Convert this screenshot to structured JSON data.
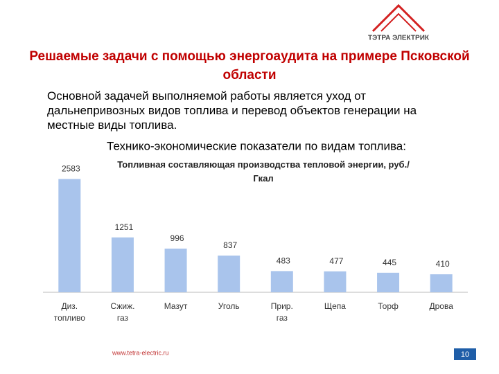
{
  "logo": "ТЭТРА ЭЛЕКТРИК",
  "title": "Решаемые задачи с помощью энергоаудита на примере Псковской области",
  "body": "Основной задачей выполняемой работы является уход от дальнепривозных видов топлива и перевод объектов генерации на местные виды топлива.",
  "subtitle": "Технико-экономические показатели по видам топлива:",
  "chart_data": {
    "type": "bar",
    "title": "Топливная составляющая производства тепловой энергии, руб./Гкал",
    "categories": [
      "Диз. топливо",
      "Сжиж. газ",
      "Мазут",
      "Уголь",
      "Прир. газ",
      "Щепа",
      "Торф",
      "Дрова"
    ],
    "values": [
      2583,
      1251,
      996,
      837,
      483,
      477,
      445,
      410
    ],
    "color": "#a9c4ec",
    "ylim": [
      0,
      3000
    ]
  },
  "footer": {
    "url": "www.tetra-electric.ru",
    "page": "10"
  }
}
